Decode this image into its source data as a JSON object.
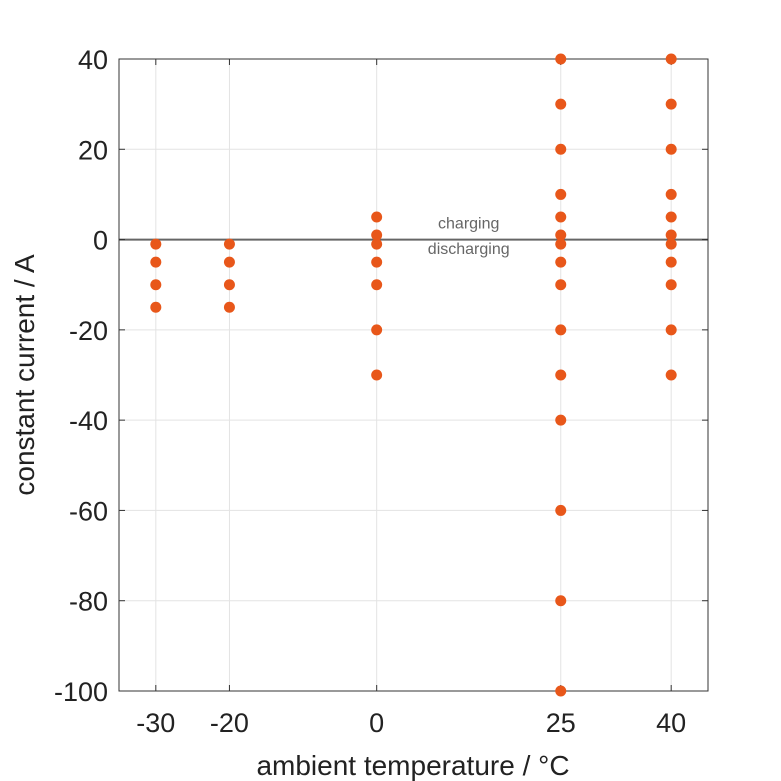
{
  "chart_data": {
    "type": "scatter",
    "title": "",
    "xlabel": "ambient temperature / °C",
    "ylabel": "constant current / A",
    "xlim": [
      -35,
      45
    ],
    "ylim": [
      -100,
      40
    ],
    "xticks": [
      -30,
      -20,
      0,
      25,
      40
    ],
    "xtick_labels": [
      "-30",
      "-20",
      "0",
      "25",
      "40"
    ],
    "yticks": [
      40,
      20,
      0,
      -20,
      -40,
      -60,
      -80,
      -100
    ],
    "ytick_labels": [
      "40",
      "20",
      "0",
      "-20",
      "-40",
      "-60",
      "-80",
      "-100"
    ],
    "grid": true,
    "legend": "none",
    "reference_line_y": 0,
    "annotations": [
      {
        "text": "charging",
        "x": 12.5,
        "y": 2.5
      },
      {
        "text": "discharging",
        "x": 12.5,
        "y": -3.2
      }
    ],
    "series": [
      {
        "color": "#e8571a",
        "points": [
          {
            "x": -30,
            "y": -1
          },
          {
            "x": -30,
            "y": -5
          },
          {
            "x": -30,
            "y": -10
          },
          {
            "x": -30,
            "y": -15
          },
          {
            "x": -20,
            "y": -1
          },
          {
            "x": -20,
            "y": -5
          },
          {
            "x": -20,
            "y": -10
          },
          {
            "x": -20,
            "y": -15
          },
          {
            "x": 0,
            "y": 5
          },
          {
            "x": 0,
            "y": 1
          },
          {
            "x": 0,
            "y": -1
          },
          {
            "x": 0,
            "y": -5
          },
          {
            "x": 0,
            "y": -10
          },
          {
            "x": 0,
            "y": -20
          },
          {
            "x": 0,
            "y": -30
          },
          {
            "x": 25,
            "y": 40
          },
          {
            "x": 25,
            "y": 30
          },
          {
            "x": 25,
            "y": 20
          },
          {
            "x": 25,
            "y": 10
          },
          {
            "x": 25,
            "y": 5
          },
          {
            "x": 25,
            "y": 1
          },
          {
            "x": 25,
            "y": -1
          },
          {
            "x": 25,
            "y": -5
          },
          {
            "x": 25,
            "y": -10
          },
          {
            "x": 25,
            "y": -20
          },
          {
            "x": 25,
            "y": -30
          },
          {
            "x": 25,
            "y": -40
          },
          {
            "x": 25,
            "y": -60
          },
          {
            "x": 25,
            "y": -80
          },
          {
            "x": 25,
            "y": -100
          },
          {
            "x": 40,
            "y": 40
          },
          {
            "x": 40,
            "y": 30
          },
          {
            "x": 40,
            "y": 20
          },
          {
            "x": 40,
            "y": 10
          },
          {
            "x": 40,
            "y": 5
          },
          {
            "x": 40,
            "y": 1
          },
          {
            "x": 40,
            "y": -1
          },
          {
            "x": 40,
            "y": -5
          },
          {
            "x": 40,
            "y": -10
          },
          {
            "x": 40,
            "y": -20
          },
          {
            "x": 40,
            "y": -30
          }
        ]
      }
    ],
    "colors": {
      "marker": "#e8571a",
      "grid": "#e3e3e3",
      "axis": "#333333",
      "reference_line": "#666666"
    }
  }
}
